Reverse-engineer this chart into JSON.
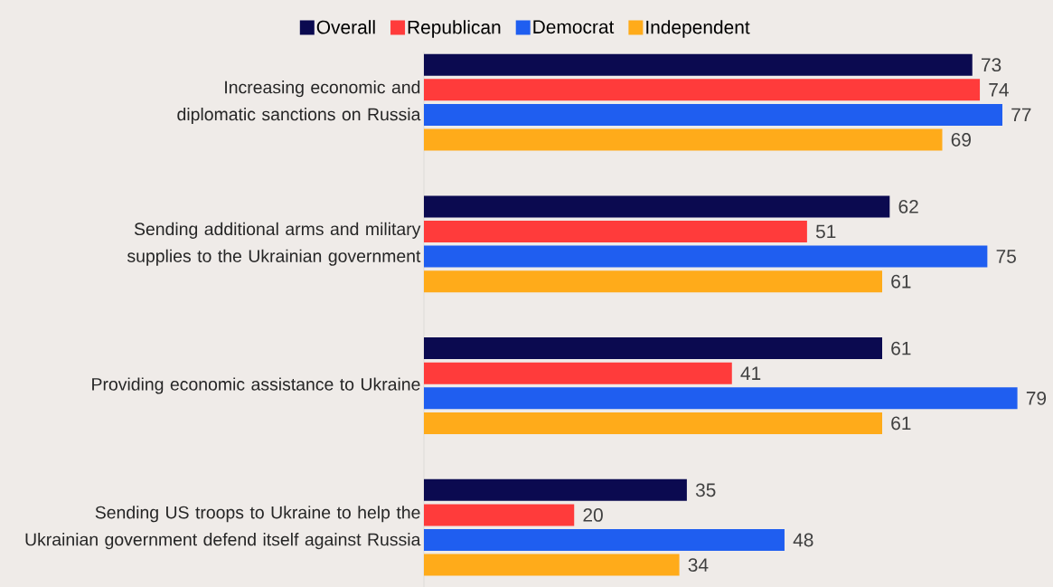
{
  "chart_data": {
    "type": "bar",
    "orientation": "horizontal",
    "legend": "top",
    "data_labels": true,
    "categories": [
      "Increasing economic and diplomatic sanctions on Russia",
      "Sending additional arms and military supplies to the Ukrainian government",
      "Providing economic assistance to Ukraine",
      "Sending US troops to Ukraine to help the Ukrainian government defend itself against Russia"
    ],
    "series": [
      {
        "name": "Overall",
        "color": "#0b0a50",
        "values": [
          73,
          62,
          61,
          35
        ]
      },
      {
        "name": "Republican",
        "color": "#ff3b3b",
        "values": [
          74,
          51,
          41,
          20
        ]
      },
      {
        "name": "Democrat",
        "color": "#1f5ef0",
        "values": [
          77,
          75,
          79,
          48
        ]
      },
      {
        "name": "Independent",
        "color": "#ffab1a",
        "values": [
          69,
          61,
          61,
          34
        ]
      }
    ]
  }
}
